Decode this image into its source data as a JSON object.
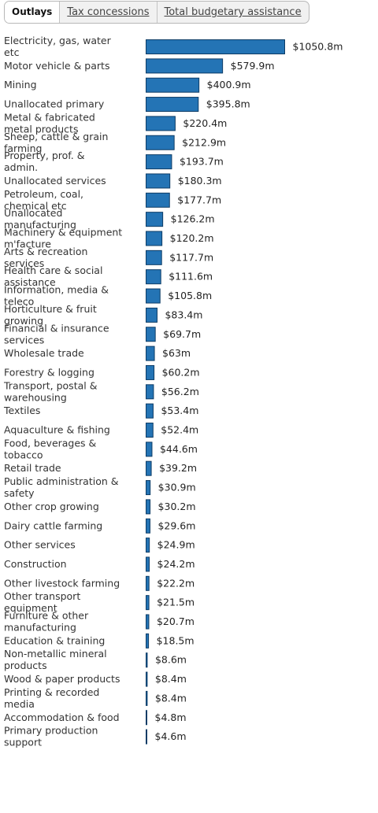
{
  "tabs": [
    {
      "label": "Outlays",
      "active": true
    },
    {
      "label": "Tax concessions",
      "active": false
    },
    {
      "label": "Total budgetary assistance",
      "active": false
    }
  ],
  "chart_data": {
    "type": "bar",
    "orientation": "horizontal",
    "bar_color": "#2474b5",
    "value_prefix": "$",
    "value_suffix": "m",
    "categories": [
      "Electricity, gas, water etc",
      "Motor vehicle & parts",
      "Mining",
      "Unallocated primary",
      "Metal & fabricated metal products",
      "Sheep, cattle & grain farming",
      "Property, prof. & admin.",
      "Unallocated services",
      "Petroleum, coal, chemical etc",
      "Unallocated manufacturing",
      "Machinery & equipment m'facture",
      "Arts & recreation services",
      "Health care & social assistance",
      "Information, media & teleco",
      "Horticulture & fruit growing",
      "Financial & insurance services",
      "Wholesale trade",
      "Forestry & logging",
      "Transport, postal & warehousing",
      "Textiles",
      "Aquaculture & fishing",
      "Food, beverages & tobacco",
      "Retail trade",
      "Public administration & safety",
      "Other crop growing",
      "Dairy cattle farming",
      "Other services",
      "Construction",
      "Other livestock farming",
      "Other transport equipment",
      "Furniture & other manufacturing",
      "Education & training",
      "Non-metallic mineral products",
      "Wood & paper products",
      "Printing & recorded media",
      "Accommodation & food",
      "Primary production support"
    ],
    "values": [
      1050.8,
      579.9,
      400.9,
      395.8,
      220.4,
      212.9,
      193.7,
      180.3,
      177.7,
      126.2,
      120.2,
      117.7,
      111.6,
      105.8,
      83.4,
      69.7,
      63,
      60.2,
      56.2,
      53.4,
      52.4,
      44.6,
      39.2,
      30.9,
      30.2,
      29.6,
      24.9,
      24.2,
      22.2,
      21.5,
      20.7,
      18.5,
      8.6,
      8.4,
      8.4,
      4.8,
      4.6
    ],
    "value_labels": [
      "$1050.8m",
      "$579.9m",
      "$400.9m",
      "$395.8m",
      "$220.4m",
      "$212.9m",
      "$193.7m",
      "$180.3m",
      "$177.7m",
      "$126.2m",
      "$120.2m",
      "$117.7m",
      "$111.6m",
      "$105.8m",
      "$83.4m",
      "$69.7m",
      "$63m",
      "$60.2m",
      "$56.2m",
      "$53.4m",
      "$52.4m",
      "$44.6m",
      "$39.2m",
      "$30.9m",
      "$30.2m",
      "$29.6m",
      "$24.9m",
      "$24.2m",
      "$22.2m",
      "$21.5m",
      "$20.7m",
      "$18.5m",
      "$8.6m",
      "$8.4m",
      "$8.4m",
      "$4.8m",
      "$4.6m"
    ],
    "title": "",
    "xlabel": "",
    "ylabel": "",
    "xlim": [
      0,
      1050.8
    ],
    "grid": false,
    "legend": "none"
  }
}
